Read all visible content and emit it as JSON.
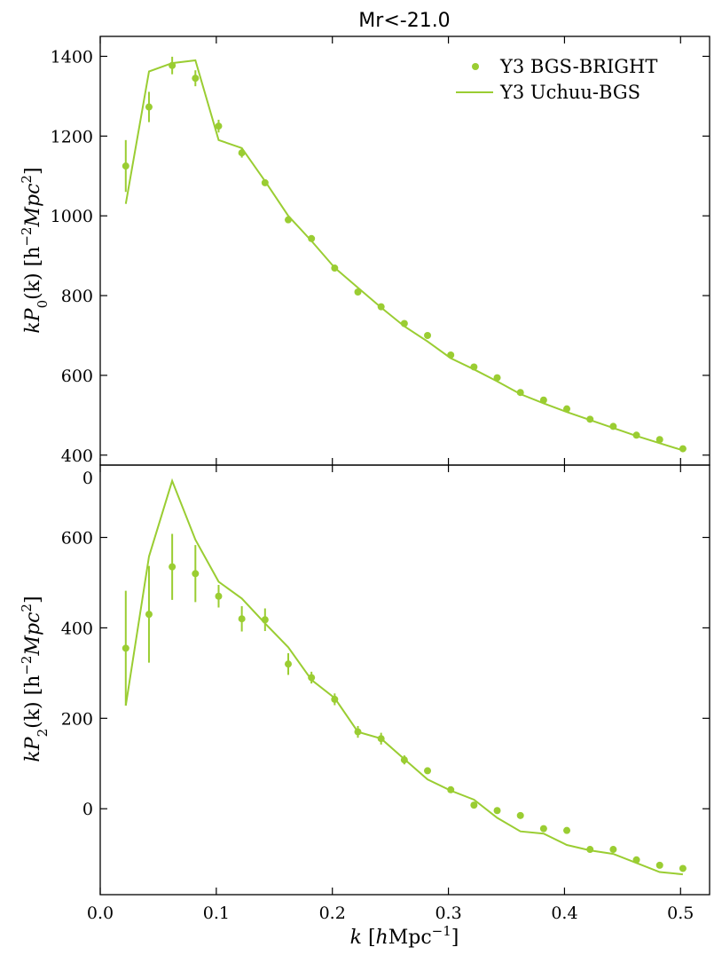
{
  "chart_data": [
    {
      "type": "line",
      "title": "Mr<-21.0",
      "ylabel": "kP_0(k) [h^{-2}Mpc^2]",
      "xlabel": "",
      "xlim": [
        0.0,
        0.525
      ],
      "ylim": [
        375,
        1450
      ],
      "x_ticks": [
        0.0,
        0.1,
        0.2,
        0.3,
        0.4,
        0.5
      ],
      "y_ticks": [
        400,
        600,
        800,
        1000,
        1200,
        1400
      ],
      "legend": {
        "position": "top-right",
        "entries": [
          "Y3 BGS-BRIGHT",
          "Y3 Uchuu-BGS"
        ]
      },
      "series": [
        {
          "name": "Y3 BGS-BRIGHT",
          "kind": "errorbar-scatter",
          "x": [
            0.022,
            0.042,
            0.062,
            0.082,
            0.102,
            0.122,
            0.142,
            0.162,
            0.182,
            0.202,
            0.222,
            0.242,
            0.262,
            0.282,
            0.302,
            0.322,
            0.342,
            0.362,
            0.382,
            0.402,
            0.422,
            0.442,
            0.462,
            0.482,
            0.502
          ],
          "y": [
            1125,
            1273,
            1377,
            1345,
            1225,
            1158,
            1083,
            990,
            943,
            869,
            809,
            772,
            730,
            700,
            651,
            621,
            594,
            557,
            538,
            516,
            490,
            472,
            450,
            439,
            416
          ],
          "yerr": [
            65,
            38,
            22,
            20,
            16,
            12,
            8,
            6,
            5,
            5,
            4,
            4,
            3,
            3,
            3,
            3,
            3,
            3,
            3,
            3,
            3,
            3,
            3,
            3,
            3
          ]
        },
        {
          "name": "Y3 Uchuu-BGS",
          "kind": "line",
          "x": [
            0.022,
            0.042,
            0.062,
            0.082,
            0.102,
            0.122,
            0.142,
            0.162,
            0.182,
            0.202,
            0.222,
            0.242,
            0.262,
            0.282,
            0.302,
            0.322,
            0.342,
            0.362,
            0.382,
            0.402,
            0.422,
            0.442,
            0.462,
            0.482,
            0.502
          ],
          "y": [
            1030,
            1362,
            1383,
            1390,
            1190,
            1170,
            1087,
            1000,
            937,
            870,
            820,
            770,
            723,
            685,
            643,
            615,
            585,
            553,
            530,
            508,
            488,
            468,
            448,
            430,
            412
          ]
        }
      ]
    },
    {
      "type": "line",
      "title": "",
      "ylabel": "kP_2(k) [h^{-2}Mpc^2]",
      "xlabel": "k [hMpc^{-1}]",
      "xlim": [
        0.0,
        0.525
      ],
      "ylim": [
        -190,
        760
      ],
      "x_ticks": [
        0.0,
        0.1,
        0.2,
        0.3,
        0.4,
        0.5
      ],
      "x_tick_labels": [
        "0.0",
        "0.1",
        "0.2",
        "0.3",
        "0.4",
        "0.5"
      ],
      "y_ticks": [
        0,
        200,
        400,
        600
      ],
      "y_top_tick_label": "0",
      "series": [
        {
          "name": "Y3 BGS-BRIGHT",
          "kind": "errorbar-scatter",
          "x": [
            0.022,
            0.042,
            0.062,
            0.082,
            0.102,
            0.122,
            0.142,
            0.162,
            0.182,
            0.202,
            0.222,
            0.242,
            0.262,
            0.282,
            0.302,
            0.322,
            0.342,
            0.362,
            0.382,
            0.402,
            0.422,
            0.442,
            0.462,
            0.482,
            0.502
          ],
          "y": [
            355,
            430,
            535,
            520,
            470,
            420,
            418,
            320,
            290,
            242,
            170,
            155,
            108,
            84,
            42,
            8,
            -4,
            -15,
            -44,
            -48,
            -90,
            -90,
            -113,
            -125,
            -132
          ],
          "yerr": [
            127,
            107,
            73,
            63,
            25,
            28,
            25,
            24,
            13,
            13,
            13,
            13,
            10,
            7,
            6,
            5,
            4,
            4,
            4,
            4,
            4,
            4,
            4,
            4,
            4
          ]
        },
        {
          "name": "Y3 Uchuu-BGS",
          "kind": "line",
          "x": [
            0.022,
            0.042,
            0.062,
            0.082,
            0.102,
            0.122,
            0.142,
            0.162,
            0.182,
            0.202,
            0.222,
            0.242,
            0.262,
            0.282,
            0.302,
            0.322,
            0.342,
            0.362,
            0.382,
            0.402,
            0.422,
            0.442,
            0.462,
            0.482,
            0.502
          ],
          "y": [
            228,
            558,
            725,
            595,
            502,
            465,
            410,
            357,
            285,
            245,
            170,
            155,
            110,
            65,
            40,
            20,
            -20,
            -50,
            -55,
            -80,
            -92,
            -100,
            -120,
            -140,
            -145
          ]
        }
      ]
    }
  ],
  "colors": {
    "series": "#9acd32",
    "axes": "#000000",
    "background": "#ffffff"
  },
  "axis_labels": {
    "top_y": {
      "prefix": "kP",
      "sub": "0",
      "mid": "(k) [h",
      "sup1": "−2",
      "mid2": "Mpc",
      "sup2": "2",
      "end": "]"
    },
    "bottom_y": {
      "prefix": "kP",
      "sub": "2",
      "mid": "(k) [h",
      "sup1": "−2",
      "mid2": "Mpc",
      "sup2": "2",
      "end": "]"
    },
    "x": {
      "k": "k",
      "open": " [",
      "h": "h",
      "unit": "Mpc",
      "sup": "−1",
      "close": "]"
    }
  }
}
